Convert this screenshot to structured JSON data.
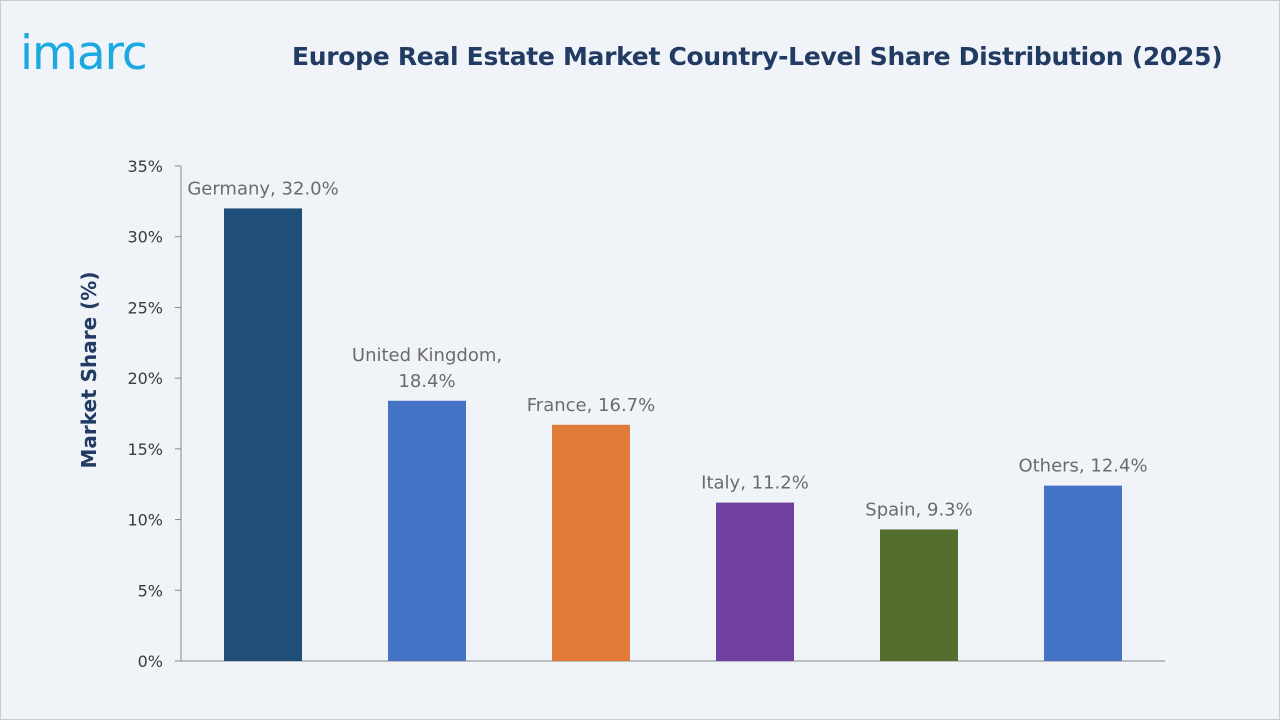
{
  "brand": {
    "logo_text": "imarc"
  },
  "colors": {
    "background": "#f0f3f8",
    "title": "#223b63",
    "logo": "#1aa9e1",
    "axis": "#888888"
  },
  "chart_data": {
    "type": "bar",
    "title": "Europe Real Estate Market Country-Level Share Distribution (2025)",
    "xlabel": "",
    "ylabel": "Market Share (%)",
    "ylim": [
      0,
      35
    ],
    "yticks": [
      0,
      5,
      10,
      15,
      20,
      25,
      30,
      35
    ],
    "ytick_suffix": "%",
    "grid": false,
    "legend": "none",
    "categories": [
      "Germany",
      "United Kingdom",
      "France",
      "Italy",
      "Spain",
      "Others"
    ],
    "values": [
      32.0,
      18.4,
      16.7,
      11.2,
      9.3,
      12.4
    ],
    "bar_colors": [
      "#1f4e79",
      "#4472c4",
      "#e07b39",
      "#7040a0",
      "#546e2e",
      "#4472c4"
    ],
    "data_labels": [
      [
        "Germany, 32.0%"
      ],
      [
        "United Kingdom,",
        "18.4%"
      ],
      [
        "France, 16.7%"
      ],
      [
        "Italy, 11.2%"
      ],
      [
        "Spain, 9.3%"
      ],
      [
        "Others, 12.4%"
      ]
    ]
  }
}
